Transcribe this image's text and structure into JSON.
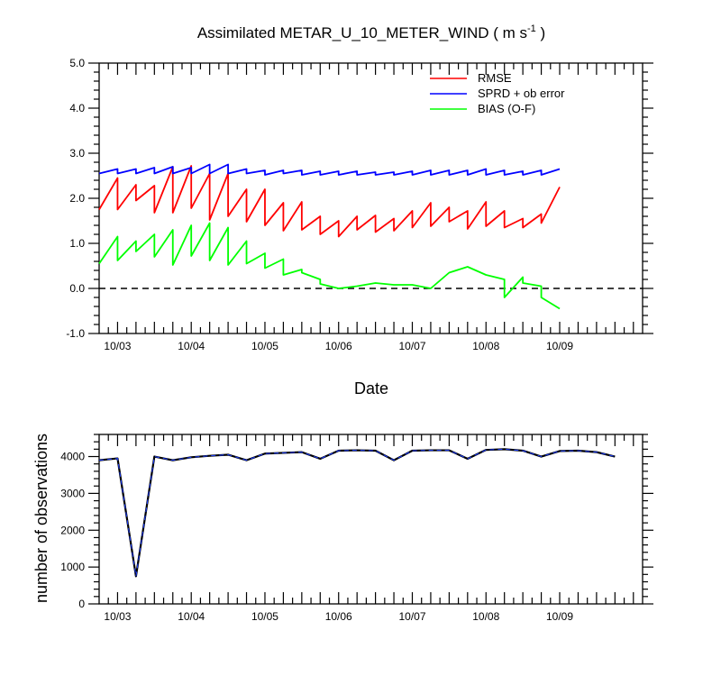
{
  "chart_data": [
    {
      "type": "line",
      "title": "Assimilated METAR_U_10_METER_WIND ( m s",
      "title_units_superscript": "-1",
      "title_close": " )",
      "xlabel": "Date",
      "ylabel": "",
      "ylim": [
        -1.0,
        5.0
      ],
      "yticks": [
        -1.0,
        0.0,
        1.0,
        2.0,
        3.0,
        4.0,
        5.0
      ],
      "ytick_labels": [
        "-1.0",
        "0.0",
        "1.0",
        "2.0",
        "3.0",
        "4.0",
        "5.0"
      ],
      "xlim": [
        0,
        29.5
      ],
      "xticks": [
        1,
        5,
        9,
        13,
        17,
        21,
        25
      ],
      "xtick_labels": [
        "10/03",
        "10/04",
        "10/05",
        "10/06",
        "10/07",
        "10/08",
        "10/09"
      ],
      "zero_line": "dashed",
      "legend": "top-right",
      "series": [
        {
          "name": "RMSE",
          "color": "#ff0000",
          "points": [
            [
              0,
              1.75
            ],
            [
              1,
              2.45
            ],
            [
              1,
              1.75
            ],
            [
              2,
              2.3
            ],
            [
              2,
              1.95
            ],
            [
              3,
              2.28
            ],
            [
              3,
              1.68
            ],
            [
              4,
              2.7
            ],
            [
              4,
              1.68
            ],
            [
              5,
              2.72
            ],
            [
              5,
              1.78
            ],
            [
              6,
              2.55
            ],
            [
              6,
              1.52
            ],
            [
              7,
              2.55
            ],
            [
              7,
              1.6
            ],
            [
              8,
              2.2
            ],
            [
              8,
              1.48
            ],
            [
              9,
              2.2
            ],
            [
              9,
              1.4
            ],
            [
              10,
              1.9
            ],
            [
              10,
              1.28
            ],
            [
              11,
              1.92
            ],
            [
              11,
              1.3
            ],
            [
              12,
              1.6
            ],
            [
              12,
              1.2
            ],
            [
              13,
              1.5
            ],
            [
              13,
              1.15
            ],
            [
              14,
              1.6
            ],
            [
              14,
              1.3
            ],
            [
              15,
              1.62
            ],
            [
              15,
              1.25
            ],
            [
              16,
              1.55
            ],
            [
              16,
              1.28
            ],
            [
              17,
              1.72
            ],
            [
              17,
              1.35
            ],
            [
              18,
              1.9
            ],
            [
              18,
              1.38
            ],
            [
              19,
              1.8
            ],
            [
              19,
              1.48
            ],
            [
              20,
              1.72
            ],
            [
              20,
              1.32
            ],
            [
              21,
              1.92
            ],
            [
              21,
              1.38
            ],
            [
              22,
              1.72
            ],
            [
              22,
              1.35
            ],
            [
              23,
              1.55
            ],
            [
              23,
              1.35
            ],
            [
              24,
              1.65
            ],
            [
              24,
              1.45
            ],
            [
              25,
              2.25
            ]
          ]
        },
        {
          "name": "SPRD + ob error",
          "color": "#0000ff",
          "points": [
            [
              0,
              2.55
            ],
            [
              1,
              2.65
            ],
            [
              1,
              2.55
            ],
            [
              2,
              2.65
            ],
            [
              2,
              2.55
            ],
            [
              3,
              2.68
            ],
            [
              3,
              2.55
            ],
            [
              4,
              2.7
            ],
            [
              4,
              2.55
            ],
            [
              5,
              2.68
            ],
            [
              5,
              2.55
            ],
            [
              6,
              2.75
            ],
            [
              6,
              2.55
            ],
            [
              7,
              2.75
            ],
            [
              7,
              2.55
            ],
            [
              8,
              2.65
            ],
            [
              8,
              2.55
            ],
            [
              9,
              2.62
            ],
            [
              9,
              2.52
            ],
            [
              10,
              2.62
            ],
            [
              10,
              2.55
            ],
            [
              11,
              2.62
            ],
            [
              11,
              2.52
            ],
            [
              12,
              2.6
            ],
            [
              12,
              2.52
            ],
            [
              13,
              2.6
            ],
            [
              13,
              2.52
            ],
            [
              14,
              2.6
            ],
            [
              14,
              2.52
            ],
            [
              15,
              2.58
            ],
            [
              15,
              2.52
            ],
            [
              16,
              2.58
            ],
            [
              16,
              2.52
            ],
            [
              17,
              2.6
            ],
            [
              17,
              2.52
            ],
            [
              18,
              2.62
            ],
            [
              18,
              2.52
            ],
            [
              19,
              2.62
            ],
            [
              19,
              2.52
            ],
            [
              20,
              2.62
            ],
            [
              20,
              2.52
            ],
            [
              21,
              2.65
            ],
            [
              21,
              2.52
            ],
            [
              22,
              2.62
            ],
            [
              22,
              2.52
            ],
            [
              23,
              2.6
            ],
            [
              23,
              2.52
            ],
            [
              24,
              2.62
            ],
            [
              24,
              2.52
            ],
            [
              25,
              2.65
            ]
          ]
        },
        {
          "name": "BIAS (O-F)",
          "color": "#00ff00",
          "points": [
            [
              0,
              0.55
            ],
            [
              1,
              1.15
            ],
            [
              1,
              0.62
            ],
            [
              2,
              1.05
            ],
            [
              2,
              0.82
            ],
            [
              3,
              1.2
            ],
            [
              3,
              0.7
            ],
            [
              4,
              1.3
            ],
            [
              4,
              0.52
            ],
            [
              5,
              1.4
            ],
            [
              5,
              0.72
            ],
            [
              6,
              1.45
            ],
            [
              6,
              0.62
            ],
            [
              7,
              1.35
            ],
            [
              7,
              0.52
            ],
            [
              8,
              1.05
            ],
            [
              8,
              0.55
            ],
            [
              9,
              0.78
            ],
            [
              9,
              0.45
            ],
            [
              10,
              0.65
            ],
            [
              10,
              0.3
            ],
            [
              11,
              0.42
            ],
            [
              11,
              0.35
            ],
            [
              12,
              0.2
            ],
            [
              12,
              0.1
            ],
            [
              13,
              0.0
            ],
            [
              14,
              0.05
            ],
            [
              15,
              0.12
            ],
            [
              16,
              0.08
            ],
            [
              17,
              0.08
            ],
            [
              18,
              0.0
            ],
            [
              19,
              0.35
            ],
            [
              20,
              0.48
            ],
            [
              21,
              0.3
            ],
            [
              22,
              0.2
            ],
            [
              22,
              -0.2
            ],
            [
              23,
              0.25
            ],
            [
              23,
              0.12
            ],
            [
              24,
              0.05
            ],
            [
              24,
              -0.2
            ],
            [
              25,
              -0.45
            ]
          ]
        }
      ]
    },
    {
      "type": "line",
      "title": "",
      "xlabel": "",
      "ylabel": "number of observations",
      "ylim": [
        0,
        4600
      ],
      "yticks": [
        0,
        1000,
        2000,
        3000,
        4000
      ],
      "ytick_labels": [
        "0",
        "1000",
        "2000",
        "3000",
        "4000"
      ],
      "xlim": [
        0,
        29.5
      ],
      "xticks": [
        1,
        5,
        9,
        13,
        17,
        21,
        25
      ],
      "xtick_labels": [
        "10/03",
        "10/04",
        "10/05",
        "10/06",
        "10/07",
        "10/08",
        "10/09"
      ],
      "series": [
        {
          "name": "observations",
          "color": "#000000",
          "points": [
            [
              0,
              3900
            ],
            [
              1,
              3950
            ],
            [
              2,
              750
            ],
            [
              3,
              4000
            ],
            [
              4,
              3900
            ],
            [
              5,
              3980
            ],
            [
              6,
              4020
            ],
            [
              7,
              4050
            ],
            [
              8,
              3900
            ],
            [
              9,
              4080
            ],
            [
              10,
              4100
            ],
            [
              11,
              4120
            ],
            [
              12,
              3940
            ],
            [
              13,
              4160
            ],
            [
              14,
              4170
            ],
            [
              15,
              4160
            ],
            [
              16,
              3900
            ],
            [
              17,
              4160
            ],
            [
              18,
              4170
            ],
            [
              19,
              4170
            ],
            [
              20,
              3940
            ],
            [
              21,
              4180
            ],
            [
              22,
              4200
            ],
            [
              23,
              4160
            ],
            [
              24,
              4000
            ],
            [
              25,
              4150
            ],
            [
              26,
              4160
            ],
            [
              27,
              4120
            ],
            [
              28,
              4000
            ]
          ]
        }
      ]
    }
  ]
}
